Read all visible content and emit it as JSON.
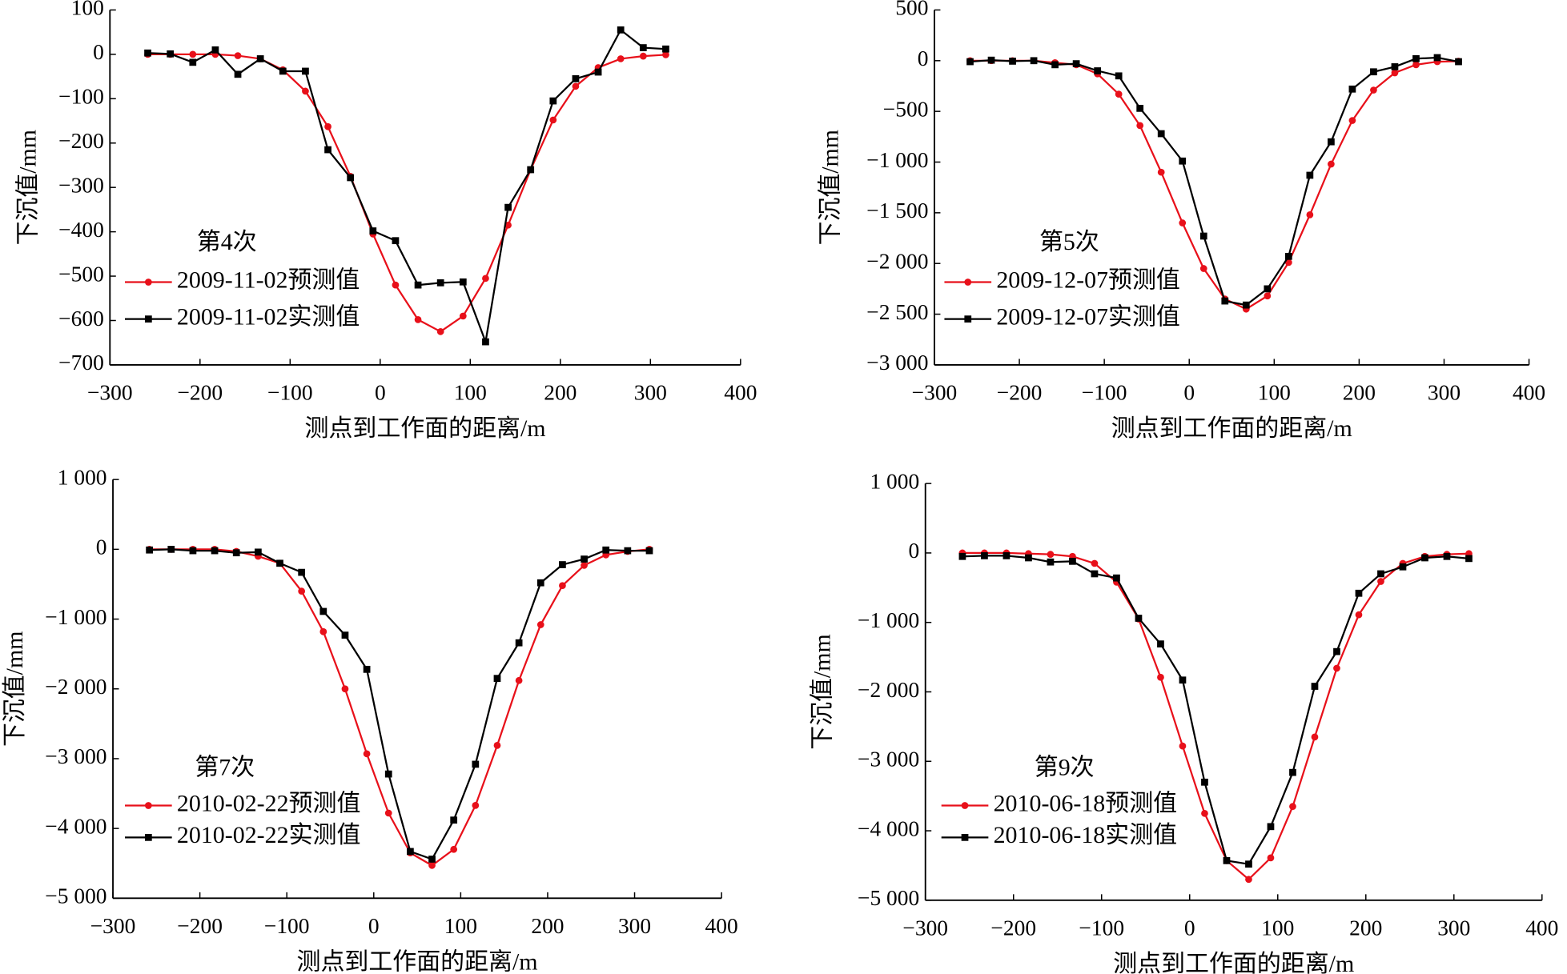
{
  "chart_data": [
    {
      "type": "line",
      "annotation": "第4次",
      "xlabel": "测点到工作面的距离/m",
      "ylabel": "下沉值/mm",
      "x": [
        -258,
        -233,
        -208,
        -183,
        -158,
        -133,
        -108,
        -83,
        -58,
        -33,
        -8,
        17,
        42,
        67,
        92,
        117,
        142,
        167,
        192,
        217,
        242,
        267,
        292,
        317
      ],
      "xlim": [
        -300,
        400
      ],
      "xticks": [
        {
          "value": -300,
          "label": "−300"
        },
        {
          "value": -200,
          "label": "−200"
        },
        {
          "value": -100,
          "label": "−100"
        },
        0,
        100,
        200,
        300,
        400
      ],
      "ylim": [
        -700,
        100
      ],
      "yticks": [
        100,
        0,
        {
          "value": -100,
          "label": "−100"
        },
        {
          "value": -200,
          "label": "−200"
        },
        {
          "value": -300,
          "label": "−300"
        },
        {
          "value": -400,
          "label": "−400"
        },
        {
          "value": -500,
          "label": "−500"
        },
        {
          "value": -600,
          "label": "−600"
        },
        {
          "value": -700,
          "label": "−700"
        }
      ],
      "series": [
        {
          "name": "2009-11-02预测值",
          "color": "#e8101a",
          "marker": "circle",
          "values": [
            0,
            0,
            0,
            0,
            -3,
            -10,
            -35,
            -83,
            -163,
            -275,
            -405,
            -520,
            -598,
            -625,
            -590,
            -505,
            -385,
            -260,
            -148,
            -72,
            -30,
            -10,
            -4,
            -1
          ]
        },
        {
          "name": "2009-11-02实测值",
          "color": "#000000",
          "marker": "square",
          "values": [
            3,
            1,
            -18,
            10,
            -45,
            -10,
            -38,
            -38,
            -215,
            -278,
            -398,
            -420,
            -520,
            -515,
            -513,
            -648,
            -345,
            -260,
            -105,
            -55,
            -40,
            55,
            15,
            12
          ]
        }
      ]
    },
    {
      "type": "line",
      "annotation": "第5次",
      "xlabel": "测点到工作面的距离/m",
      "ylabel": "下沉值/mm",
      "x": [
        -258,
        -233,
        -208,
        -183,
        -158,
        -133,
        -108,
        -83,
        -58,
        -33,
        -8,
        17,
        42,
        67,
        92,
        117,
        142,
        167,
        192,
        217,
        242,
        267,
        292,
        317
      ],
      "xlim": [
        -300,
        400
      ],
      "xticks": [
        {
          "value": -300,
          "label": "−300"
        },
        {
          "value": -200,
          "label": "−200"
        },
        {
          "value": -100,
          "label": "−100"
        },
        0,
        100,
        200,
        300,
        400
      ],
      "ylim": [
        -3000,
        500
      ],
      "yticks": [
        500,
        0,
        {
          "value": -500,
          "label": "−500"
        },
        {
          "value": -1000,
          "label": "−1 000"
        },
        {
          "value": -1500,
          "label": "−1 500"
        },
        {
          "value": -2000,
          "label": "−2 000"
        },
        {
          "value": -2500,
          "label": "−2 500"
        },
        {
          "value": -3000,
          "label": "−3 000"
        }
      ],
      "series": [
        {
          "name": "2009-12-07预测值",
          "color": "#e8101a",
          "marker": "circle",
          "values": [
            0,
            0,
            0,
            0,
            -20,
            -40,
            -130,
            -330,
            -640,
            -1100,
            -1600,
            -2050,
            -2350,
            -2450,
            -2320,
            -1990,
            -1520,
            -1020,
            -590,
            -290,
            -120,
            -40,
            -10,
            -5
          ]
        },
        {
          "name": "2009-12-07实测值",
          "color": "#000000",
          "marker": "square",
          "values": [
            -10,
            5,
            -5,
            0,
            -40,
            -30,
            -100,
            -150,
            -470,
            -720,
            -990,
            -1730,
            -2370,
            -2410,
            -2250,
            -1930,
            -1130,
            -800,
            -280,
            -110,
            -60,
            20,
            30,
            -10
          ]
        }
      ]
    },
    {
      "type": "line",
      "annotation": "第7次",
      "xlabel": "测点到工作面的距离/m",
      "ylabel": "下沉值/mm",
      "x": [
        -258,
        -233,
        -208,
        -183,
        -158,
        -133,
        -108,
        -83,
        -58,
        -33,
        -8,
        17,
        42,
        67,
        92,
        117,
        142,
        167,
        192,
        217,
        242,
        267,
        292,
        317
      ],
      "xlim": [
        -300,
        400
      ],
      "xticks": [
        {
          "value": -300,
          "label": "−300"
        },
        {
          "value": -200,
          "label": "−200"
        },
        {
          "value": -100,
          "label": "−100"
        },
        0,
        100,
        200,
        300,
        400
      ],
      "ylim": [
        -5000,
        1000
      ],
      "yticks": [
        {
          "value": 1000,
          "label": "1 000"
        },
        0,
        {
          "value": -1000,
          "label": "−1 000"
        },
        {
          "value": -2000,
          "label": "−2 000"
        },
        {
          "value": -3000,
          "label": "−3 000"
        },
        {
          "value": -4000,
          "label": "−4 000"
        },
        {
          "value": -5000,
          "label": "−5 000"
        }
      ],
      "series": [
        {
          "name": "2010-02-22预测值",
          "color": "#e8101a",
          "marker": "circle",
          "values": [
            0,
            0,
            0,
            0,
            -30,
            -100,
            -200,
            -600,
            -1180,
            -2000,
            -2930,
            -3780,
            -4350,
            -4530,
            -4300,
            -3670,
            -2810,
            -1880,
            -1080,
            -520,
            -230,
            -80,
            -30,
            0
          ]
        },
        {
          "name": "2010-02-22实测值",
          "color": "#000000",
          "marker": "square",
          "values": [
            -10,
            0,
            -20,
            -20,
            -50,
            -40,
            -200,
            -330,
            -890,
            -1230,
            -1720,
            -3220,
            -4330,
            -4440,
            -3880,
            -3080,
            -1850,
            -1340,
            -480,
            -220,
            -140,
            -10,
            -20,
            -20
          ]
        }
      ]
    },
    {
      "type": "line",
      "annotation": "第9次",
      "xlabel": "测点到工作面的距离/m",
      "ylabel": "下沉值/mm",
      "x": [
        -258,
        -233,
        -208,
        -183,
        -158,
        -133,
        -108,
        -83,
        -58,
        -33,
        -8,
        17,
        42,
        67,
        92,
        117,
        142,
        167,
        192,
        217,
        242,
        267,
        292,
        317
      ],
      "xlim": [
        -300,
        400
      ],
      "xticks": [
        {
          "value": -300,
          "label": "−300"
        },
        {
          "value": -200,
          "label": "−200"
        },
        {
          "value": -100,
          "label": "−100"
        },
        0,
        100,
        200,
        300,
        400
      ],
      "ylim": [
        -5000,
        1000
      ],
      "yticks": [
        {
          "value": 1000,
          "label": "1 000"
        },
        0,
        {
          "value": -1000,
          "label": "−1 000"
        },
        {
          "value": -2000,
          "label": "−2 000"
        },
        {
          "value": -3000,
          "label": "−3 000"
        },
        {
          "value": -4000,
          "label": "−4 000"
        },
        {
          "value": -5000,
          "label": "−5 000"
        }
      ],
      "series": [
        {
          "name": "2010-06-18预测值",
          "color": "#e8101a",
          "marker": "circle",
          "values": [
            0,
            0,
            0,
            -10,
            -20,
            -50,
            -150,
            -420,
            -950,
            -1790,
            -2780,
            -3750,
            -4430,
            -4700,
            -4390,
            -3650,
            -2650,
            -1660,
            -890,
            -410,
            -150,
            -50,
            -20,
            -10
          ]
        },
        {
          "name": "2010-06-18实测值",
          "color": "#000000",
          "marker": "square",
          "values": [
            -50,
            -40,
            -40,
            -70,
            -130,
            -120,
            -300,
            -360,
            -940,
            -1310,
            -1830,
            -3300,
            -4430,
            -4480,
            -3940,
            -3160,
            -1920,
            -1420,
            -580,
            -300,
            -200,
            -70,
            -50,
            -80
          ]
        }
      ]
    }
  ]
}
